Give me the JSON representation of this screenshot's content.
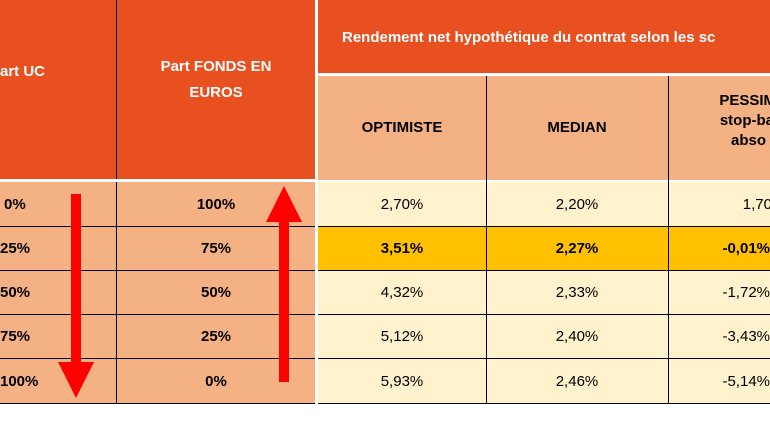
{
  "header": {
    "col_uc": "art UC",
    "col_fonds_line1": "Part FONDS EN",
    "col_fonds_line2": "EUROS",
    "group_title": "Rendement net hypothétique du contrat selon les sc",
    "optimiste": "OPTIMISTE",
    "median": "MEDIAN",
    "pessim_line1": "PESSIM",
    "pessim_line2": "stop-ba",
    "pessim_line3": "abso"
  },
  "rows": [
    {
      "uc": "0%",
      "fonds": "100%",
      "optimiste": "2,70%",
      "median": "2,20%",
      "pessimiste": "1,70"
    },
    {
      "uc": "25%",
      "fonds": "75%",
      "optimiste": "3,51%",
      "median": "2,27%",
      "pessimiste": "-0,01%"
    },
    {
      "uc": "50%",
      "fonds": "50%",
      "optimiste": "4,32%",
      "median": "2,33%",
      "pessimiste": "-1,72%"
    },
    {
      "uc": "75%",
      "fonds": "25%",
      "optimiste": "5,12%",
      "median": "2,40%",
      "pessimiste": "-3,43%"
    },
    {
      "uc": "100%",
      "fonds": "0%",
      "optimiste": "5,93%",
      "median": "2,46%",
      "pessimiste": "-5,14%"
    }
  ],
  "highlight_row": 1,
  "colors": {
    "header_dark": "#e8501f",
    "header_light": "#f4b183",
    "body_cream": "#fff2cc",
    "highlight": "#ffc000",
    "arrow": "#ff0000"
  },
  "icons": [
    "arrow-down-icon",
    "arrow-up-icon"
  ]
}
